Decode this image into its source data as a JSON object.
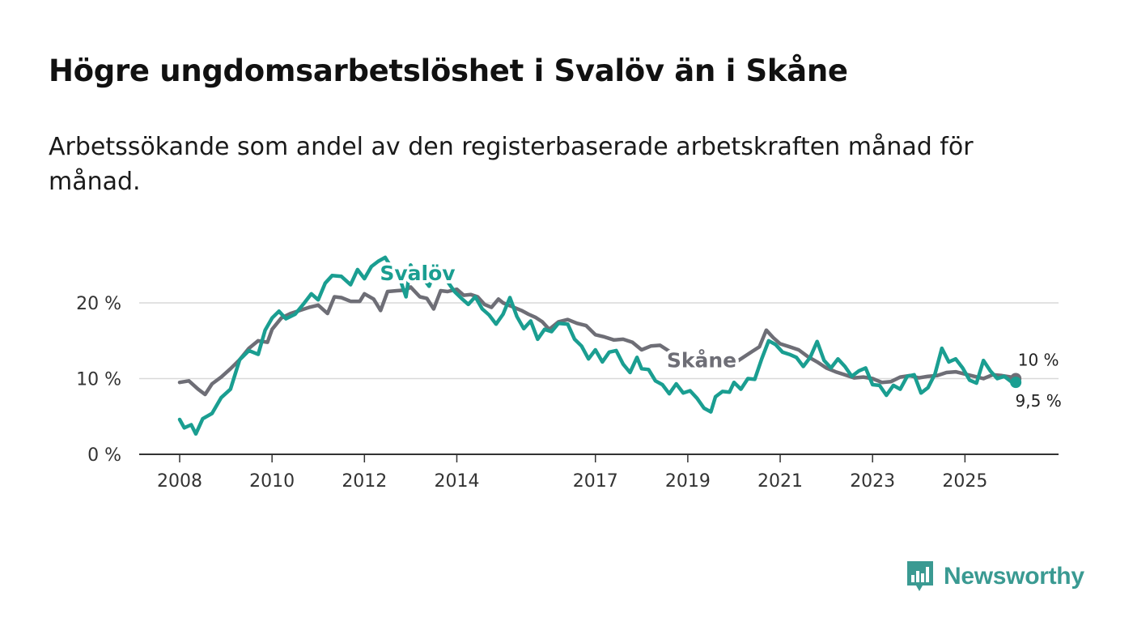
{
  "title": "Högre ungdomsarbetslöshet i Svalöv än i Skåne",
  "subtitle": "Arbetssökande som andel av den registerbaserade arbetskraften månad för månad.",
  "brand": {
    "name": "Newsworthy",
    "icon": "newsworthy-logo-icon",
    "color": "#3a9a92"
  },
  "chart_data": {
    "type": "line",
    "title": "Högre ungdomsarbetslöshet i Svalöv än i Skåne",
    "xlabel": "",
    "ylabel": "",
    "xlim": [
      2008.0,
      2026.15
    ],
    "ylim": [
      0,
      25
    ],
    "grid": true,
    "yticks": [
      {
        "value": 0,
        "label": "0 %"
      },
      {
        "value": 10,
        "label": "10 %"
      },
      {
        "value": 20,
        "label": "20 %"
      }
    ],
    "xticks": [
      {
        "value": 2008,
        "label": "2008"
      },
      {
        "value": 2010,
        "label": "2010"
      },
      {
        "value": 2012,
        "label": "2012"
      },
      {
        "value": 2014,
        "label": "2014"
      },
      {
        "value": 2017,
        "label": "2017"
      },
      {
        "value": 2019,
        "label": "2019"
      },
      {
        "value": 2021,
        "label": "2021"
      },
      {
        "value": 2023,
        "label": "2023"
      },
      {
        "value": 2025,
        "label": "2025"
      }
    ],
    "series": [
      {
        "name": "Skåne",
        "color": "#6e6e76",
        "label_at": [
          2019.3,
          11.5
        ],
        "end_label": "10 %",
        "points": [
          [
            2008.0,
            9.5
          ],
          [
            2008.2,
            9.7
          ],
          [
            2008.4,
            8.6
          ],
          [
            2008.55,
            7.9
          ],
          [
            2008.7,
            9.3
          ],
          [
            2008.9,
            10.2
          ],
          [
            2009.1,
            11.3
          ],
          [
            2009.3,
            12.5
          ],
          [
            2009.5,
            14.0
          ],
          [
            2009.7,
            15.0
          ],
          [
            2009.9,
            14.8
          ],
          [
            2010.0,
            16.5
          ],
          [
            2010.2,
            18.0
          ],
          [
            2010.4,
            18.6
          ],
          [
            2010.6,
            19.0
          ],
          [
            2010.8,
            19.4
          ],
          [
            2011.0,
            19.7
          ],
          [
            2011.2,
            18.6
          ],
          [
            2011.35,
            20.8
          ],
          [
            2011.5,
            20.7
          ],
          [
            2011.7,
            20.2
          ],
          [
            2011.9,
            20.2
          ],
          [
            2012.0,
            21.2
          ],
          [
            2012.2,
            20.5
          ],
          [
            2012.35,
            19.0
          ],
          [
            2012.5,
            21.5
          ],
          [
            2012.7,
            21.6
          ],
          [
            2012.9,
            21.7
          ],
          [
            2013.0,
            22.1
          ],
          [
            2013.2,
            20.8
          ],
          [
            2013.35,
            20.6
          ],
          [
            2013.5,
            19.2
          ],
          [
            2013.65,
            21.6
          ],
          [
            2013.8,
            21.5
          ],
          [
            2014.0,
            21.8
          ],
          [
            2014.15,
            21.0
          ],
          [
            2014.3,
            21.1
          ],
          [
            2014.45,
            20.8
          ],
          [
            2014.6,
            19.8
          ],
          [
            2014.75,
            19.4
          ],
          [
            2014.9,
            20.5
          ],
          [
            2015.0,
            20.0
          ],
          [
            2015.2,
            19.5
          ],
          [
            2015.4,
            19.0
          ],
          [
            2015.55,
            18.5
          ],
          [
            2015.7,
            18.1
          ],
          [
            2015.85,
            17.5
          ],
          [
            2016.0,
            16.5
          ],
          [
            2016.2,
            17.5
          ],
          [
            2016.4,
            17.8
          ],
          [
            2016.6,
            17.3
          ],
          [
            2016.8,
            17.0
          ],
          [
            2017.0,
            15.8
          ],
          [
            2017.2,
            15.5
          ],
          [
            2017.4,
            15.1
          ],
          [
            2017.6,
            15.2
          ],
          [
            2017.8,
            14.8
          ],
          [
            2018.0,
            13.8
          ],
          [
            2018.2,
            14.3
          ],
          [
            2018.4,
            14.4
          ],
          [
            2018.6,
            13.6
          ],
          [
            2018.8,
            12.6
          ],
          [
            2019.0,
            12.3
          ],
          [
            2019.2,
            12.0
          ],
          [
            2019.4,
            11.6
          ],
          [
            2019.6,
            11.4
          ],
          [
            2019.8,
            11.5
          ],
          [
            2020.0,
            12.0
          ],
          [
            2020.2,
            12.8
          ],
          [
            2020.4,
            13.6
          ],
          [
            2020.55,
            14.2
          ],
          [
            2020.7,
            16.4
          ],
          [
            2020.85,
            15.4
          ],
          [
            2021.0,
            14.6
          ],
          [
            2021.2,
            14.2
          ],
          [
            2021.4,
            13.8
          ],
          [
            2021.6,
            12.9
          ],
          [
            2021.8,
            12.2
          ],
          [
            2022.0,
            11.4
          ],
          [
            2022.2,
            10.9
          ],
          [
            2022.4,
            10.5
          ],
          [
            2022.6,
            10.1
          ],
          [
            2022.8,
            10.2
          ],
          [
            2023.0,
            10.0
          ],
          [
            2023.2,
            9.5
          ],
          [
            2023.4,
            9.6
          ],
          [
            2023.6,
            10.2
          ],
          [
            2023.8,
            10.4
          ],
          [
            2024.0,
            10.1
          ],
          [
            2024.2,
            10.3
          ],
          [
            2024.4,
            10.4
          ],
          [
            2024.6,
            10.8
          ],
          [
            2024.8,
            10.9
          ],
          [
            2025.0,
            10.6
          ],
          [
            2025.2,
            10.3
          ],
          [
            2025.4,
            10.0
          ],
          [
            2025.6,
            10.5
          ],
          [
            2025.8,
            10.4
          ],
          [
            2026.0,
            10.2
          ],
          [
            2026.1,
            10.0
          ]
        ]
      },
      {
        "name": "Svalöv",
        "color": "#1a9e91",
        "label_at": [
          2013.15,
          23.0
        ],
        "end_label": "9,5 %",
        "points": [
          [
            2008.0,
            4.6
          ],
          [
            2008.1,
            3.5
          ],
          [
            2008.25,
            3.9
          ],
          [
            2008.35,
            2.7
          ],
          [
            2008.5,
            4.7
          ],
          [
            2008.7,
            5.4
          ],
          [
            2008.9,
            7.5
          ],
          [
            2009.1,
            8.6
          ],
          [
            2009.3,
            12.5
          ],
          [
            2009.5,
            13.7
          ],
          [
            2009.7,
            13.2
          ],
          [
            2009.85,
            16.4
          ],
          [
            2010.0,
            18.0
          ],
          [
            2010.15,
            18.9
          ],
          [
            2010.3,
            17.9
          ],
          [
            2010.5,
            18.5
          ],
          [
            2010.7,
            20.0
          ],
          [
            2010.85,
            21.2
          ],
          [
            2011.0,
            20.4
          ],
          [
            2011.15,
            22.6
          ],
          [
            2011.3,
            23.6
          ],
          [
            2011.5,
            23.5
          ],
          [
            2011.7,
            22.4
          ],
          [
            2011.85,
            24.4
          ],
          [
            2012.0,
            23.2
          ],
          [
            2012.15,
            24.8
          ],
          [
            2012.3,
            25.5
          ],
          [
            2012.45,
            26.0
          ],
          [
            2012.6,
            24.5
          ],
          [
            2012.75,
            23.5
          ],
          [
            2012.9,
            20.8
          ],
          [
            2013.0,
            25.0
          ],
          [
            2013.1,
            23.8
          ],
          [
            2013.25,
            23.4
          ],
          [
            2013.4,
            22.2
          ],
          [
            2013.55,
            24.6
          ],
          [
            2013.7,
            23.4
          ],
          [
            2013.8,
            22.8
          ],
          [
            2013.95,
            21.5
          ],
          [
            2014.1,
            20.6
          ],
          [
            2014.25,
            19.8
          ],
          [
            2014.4,
            20.8
          ],
          [
            2014.55,
            19.2
          ],
          [
            2014.7,
            18.4
          ],
          [
            2014.85,
            17.2
          ],
          [
            2015.0,
            18.5
          ],
          [
            2015.15,
            20.7
          ],
          [
            2015.3,
            18.2
          ],
          [
            2015.45,
            16.6
          ],
          [
            2015.6,
            17.6
          ],
          [
            2015.75,
            15.2
          ],
          [
            2015.9,
            16.5
          ],
          [
            2016.05,
            16.2
          ],
          [
            2016.2,
            17.3
          ],
          [
            2016.4,
            17.2
          ],
          [
            2016.55,
            15.2
          ],
          [
            2016.7,
            14.3
          ],
          [
            2016.85,
            12.6
          ],
          [
            2017.0,
            13.8
          ],
          [
            2017.15,
            12.2
          ],
          [
            2017.3,
            13.5
          ],
          [
            2017.45,
            13.7
          ],
          [
            2017.6,
            11.9
          ],
          [
            2017.75,
            10.8
          ],
          [
            2017.9,
            12.8
          ],
          [
            2018.0,
            11.3
          ],
          [
            2018.15,
            11.2
          ],
          [
            2018.3,
            9.7
          ],
          [
            2018.45,
            9.2
          ],
          [
            2018.6,
            8.0
          ],
          [
            2018.75,
            9.3
          ],
          [
            2018.9,
            8.1
          ],
          [
            2019.05,
            8.4
          ],
          [
            2019.2,
            7.4
          ],
          [
            2019.35,
            6.1
          ],
          [
            2019.5,
            5.6
          ],
          [
            2019.6,
            7.6
          ],
          [
            2019.75,
            8.3
          ],
          [
            2019.9,
            8.2
          ],
          [
            2020.0,
            9.5
          ],
          [
            2020.15,
            8.6
          ],
          [
            2020.3,
            10.0
          ],
          [
            2020.45,
            9.9
          ],
          [
            2020.6,
            12.6
          ],
          [
            2020.75,
            15.0
          ],
          [
            2020.9,
            14.5
          ],
          [
            2021.05,
            13.5
          ],
          [
            2021.2,
            13.2
          ],
          [
            2021.35,
            12.8
          ],
          [
            2021.5,
            11.6
          ],
          [
            2021.65,
            12.8
          ],
          [
            2021.8,
            14.9
          ],
          [
            2021.95,
            12.4
          ],
          [
            2022.1,
            11.4
          ],
          [
            2022.25,
            12.6
          ],
          [
            2022.4,
            11.6
          ],
          [
            2022.55,
            10.3
          ],
          [
            2022.7,
            11.0
          ],
          [
            2022.85,
            11.4
          ],
          [
            2023.0,
            9.2
          ],
          [
            2023.15,
            9.1
          ],
          [
            2023.3,
            7.8
          ],
          [
            2023.45,
            9.1
          ],
          [
            2023.6,
            8.6
          ],
          [
            2023.75,
            10.3
          ],
          [
            2023.9,
            10.5
          ],
          [
            2024.05,
            8.1
          ],
          [
            2024.2,
            8.8
          ],
          [
            2024.35,
            10.6
          ],
          [
            2024.5,
            14.0
          ],
          [
            2024.65,
            12.2
          ],
          [
            2024.8,
            12.6
          ],
          [
            2024.95,
            11.4
          ],
          [
            2025.1,
            9.8
          ],
          [
            2025.25,
            9.4
          ],
          [
            2025.4,
            12.4
          ],
          [
            2025.55,
            11.0
          ],
          [
            2025.7,
            10.0
          ],
          [
            2025.85,
            10.3
          ],
          [
            2026.0,
            9.6
          ],
          [
            2026.1,
            9.5
          ]
        ]
      }
    ]
  }
}
